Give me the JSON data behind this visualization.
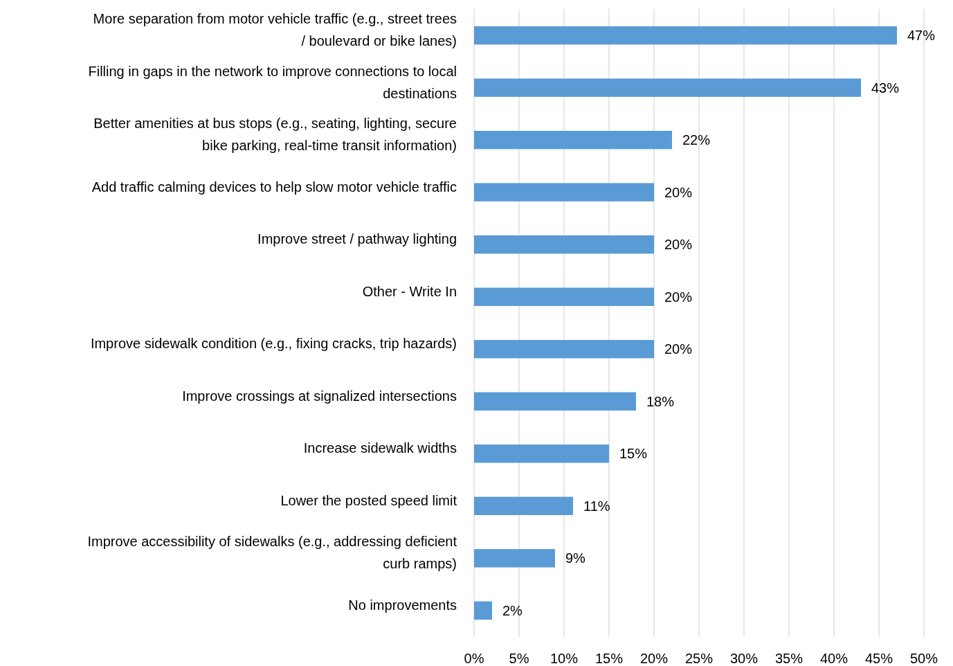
{
  "chart_data": {
    "type": "bar",
    "orientation": "horizontal",
    "categories": [
      "More separation from motor vehicle traffic (e.g., street trees / boulevard or bike lanes)",
      "Filling in gaps in the network to improve connections to local destinations",
      "Better amenities at bus stops (e.g., seating, lighting, secure bike parking, real-time transit information)",
      "Add traffic calming devices to help slow motor vehicle traffic",
      "Improve street / pathway lighting",
      "Other - Write In",
      "Improve sidewalk condition (e.g., fixing cracks, trip hazards)",
      "Improve crossings at signalized intersections",
      "Increase sidewalk widths",
      "Lower the posted speed limit",
      "Improve accessibility of sidewalks (e.g., addressing deficient curb ramps)",
      "No improvements"
    ],
    "values": [
      47,
      43,
      22,
      20,
      20,
      20,
      20,
      18,
      15,
      11,
      9,
      2
    ],
    "value_labels": [
      "47%",
      "43%",
      "22%",
      "20%",
      "20%",
      "20%",
      "20%",
      "18%",
      "15%",
      "11%",
      "9%",
      "2%"
    ],
    "color": "#5b9bd5",
    "xlim": [
      0,
      50
    ],
    "xticks": [
      {
        "value": 0,
        "label": "0%"
      },
      {
        "value": 5,
        "label": "5%"
      },
      {
        "value": 10,
        "label": "10%"
      },
      {
        "value": 15,
        "label": "15%"
      },
      {
        "value": 20,
        "label": "20%"
      },
      {
        "value": 25,
        "label": "25%"
      },
      {
        "value": 30,
        "label": "30%"
      },
      {
        "value": 35,
        "label": "35%"
      },
      {
        "value": 40,
        "label": "40%"
      },
      {
        "value": 45,
        "label": "45%"
      },
      {
        "value": 50,
        "label": "50%"
      }
    ],
    "grid": "x"
  }
}
